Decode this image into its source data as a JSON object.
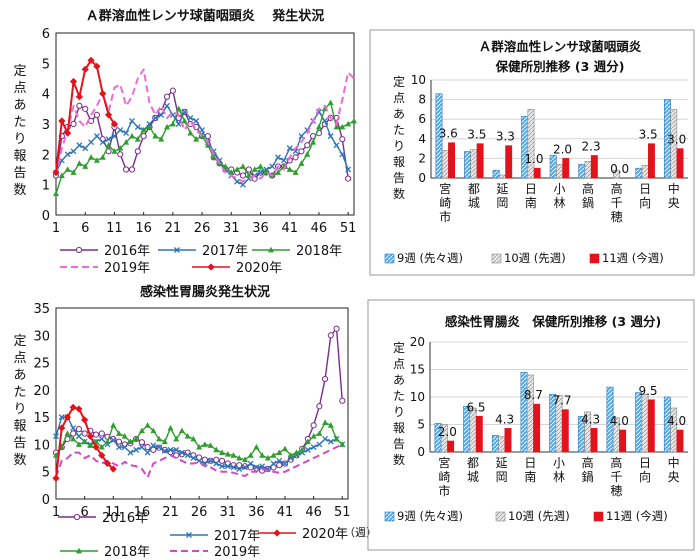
{
  "chart_data": [
    {
      "type": "line",
      "title": "Ａ群溶血性レンサ球菌咽頭炎　 発生状況",
      "ylabel": "定点あたり報告数",
      "xlabel": "",
      "ylim": [
        0,
        6
      ],
      "yticks": [
        "0",
        "1",
        "2",
        "3",
        "4",
        "5",
        "6"
      ],
      "xlim": [
        1,
        52
      ],
      "xticks": [
        "1",
        "6",
        "11",
        "16",
        "21",
        "26",
        "31",
        "36",
        "41",
        "46",
        "51"
      ],
      "grid": false,
      "legend": "bottom",
      "series": [
        {
          "name": "2016年",
          "color": "#7b2c8e",
          "marker": "circle",
          "values": [
            1.3,
            2.6,
            2.9,
            3.0,
            3.6,
            3.5,
            3.1,
            3.3,
            2.5,
            2.1,
            2.9,
            2.0,
            1.5,
            1.5,
            2.1,
            2.6,
            2.9,
            3.2,
            3.4,
            3.9,
            4.1,
            3.2,
            3.4,
            3.0,
            2.9,
            2.6,
            2.6,
            1.9,
            1.7,
            1.5,
            1.5,
            1.4,
            1.3,
            1.5,
            1.2,
            1.4,
            1.4,
            1.3,
            1.6,
            1.6,
            1.8,
            1.9,
            2.1,
            2.3,
            2.6,
            2.7,
            3.0,
            3.2,
            3.2,
            2.5,
            1.2
          ]
        },
        {
          "name": "2017年",
          "color": "#2e75b6",
          "marker": "x",
          "values": [
            1.4,
            1.8,
            2.0,
            2.1,
            2.3,
            2.2,
            2.4,
            2.6,
            2.4,
            2.5,
            2.6,
            2.8,
            2.7,
            3.1,
            2.9,
            2.8,
            3.0,
            3.2,
            3.3,
            3.6,
            3.3,
            3.0,
            3.4,
            3.2,
            3.1,
            2.8,
            2.4,
            2.1,
            1.8,
            1.5,
            1.3,
            1.1,
            1.0,
            1.2,
            1.3,
            1.4,
            1.5,
            1.6,
            1.9,
            1.8,
            2.2,
            2.1,
            2.6,
            2.8,
            3.1,
            3.4,
            3.1,
            2.6,
            2.3,
            2.0,
            1.5
          ]
        },
        {
          "name": "2018年",
          "color": "#2e9e2e",
          "marker": "triangle",
          "values": [
            0.7,
            1.3,
            1.5,
            1.4,
            1.7,
            1.6,
            1.9,
            1.8,
            1.9,
            2.3,
            2.1,
            2.2,
            2.4,
            2.6,
            2.5,
            2.8,
            2.9,
            2.6,
            2.5,
            2.9,
            3.0,
            3.5,
            3.1,
            2.7,
            2.5,
            2.6,
            2.3,
            1.9,
            1.7,
            1.6,
            1.4,
            1.5,
            1.6,
            1.3,
            1.5,
            1.6,
            1.4,
            1.3,
            1.4,
            1.6,
            1.5,
            1.4,
            1.7,
            2.0,
            2.4,
            2.9,
            3.5,
            3.7,
            2.9,
            2.9,
            3.0,
            3.1
          ]
        },
        {
          "name": "2019年",
          "color": "#ee6bd6",
          "marker": "none",
          "dash": true,
          "values": [
            1.3,
            2.2,
            2.8,
            3.6,
            3.1,
            2.9,
            3.3,
            3.6,
            4.0,
            3.4,
            4.2,
            4.3,
            3.6,
            3.9,
            4.5,
            4.8,
            3.7,
            3.3,
            3.6,
            3.2,
            3.4,
            3.3,
            2.8,
            3.1,
            2.8,
            2.6,
            2.4,
            2.0,
            1.7,
            1.4,
            1.3,
            1.2,
            1.1,
            1.2,
            1.3,
            1.2,
            1.4,
            1.3,
            1.6,
            1.5,
            1.9,
            2.2,
            2.4,
            2.7,
            3.1,
            3.5,
            3.6,
            3.2,
            3.0,
            3.8,
            4.7,
            4.5
          ]
        },
        {
          "name": "2020年",
          "color": "#e3131b",
          "marker": "diamond",
          "values": [
            1.4,
            3.1,
            2.7,
            4.4,
            3.9,
            4.8,
            5.1,
            4.9,
            4.0,
            3.3,
            3.0
          ]
        }
      ]
    },
    {
      "type": "bar",
      "title": "Ａ群溶血性レンサ球菌咽頭炎",
      "subtitle": "保健所別推移 (3 週分)",
      "ylabel": "定点あたり報告数",
      "ylim": [
        0,
        10
      ],
      "yticks": [
        "0",
        "2",
        "4",
        "6",
        "8",
        "10"
      ],
      "categories": [
        "宮崎市",
        "都城",
        "延岡",
        "日南",
        "小林",
        "高鍋",
        "高千穂",
        "日向",
        "中央"
      ],
      "legend": "bottom",
      "series": [
        {
          "name": "9週 (先々週)",
          "color": "#5ea9dd",
          "pattern": "hatch",
          "values": [
            8.6,
            2.7,
            0.8,
            6.3,
            2.3,
            1.4,
            0.0,
            1.0,
            8.0
          ]
        },
        {
          "name": "10週 (先週)",
          "color": "#d9d9d9",
          "pattern": "hatch",
          "values": [
            2.8,
            2.9,
            0.3,
            7.0,
            1.4,
            1.7,
            0.8,
            1.3,
            7.0
          ]
        },
        {
          "name": "11週 (今週)",
          "color": "#e3131b",
          "pattern": "solid",
          "values": [
            3.6,
            3.5,
            3.3,
            1.0,
            2.0,
            2.3,
            0.0,
            3.5,
            3.0
          ]
        }
      ],
      "data_labels": [
        "3.6",
        "3.5",
        "3.3",
        "1.0",
        "2.0",
        "2.3",
        "0.0",
        "3.5",
        "3.0"
      ]
    },
    {
      "type": "line",
      "title": "感染性胃腸炎発生状況",
      "ylabel": "定点あたり報告数",
      "xlabel": "（週）",
      "ylim": [
        0,
        35
      ],
      "yticks": [
        "0",
        "5",
        "10",
        "15",
        "20",
        "25",
        "30",
        "35"
      ],
      "xlim": [
        1,
        52
      ],
      "xticks": [
        "1",
        "6",
        "11",
        "16",
        "21",
        "26",
        "31",
        "36",
        "41",
        "46",
        "51"
      ],
      "grid": false,
      "legend": "bottom",
      "series": [
        {
          "name": "2016年",
          "color": "#7b2c8e",
          "marker": "circle",
          "values": [
            8.5,
            9.5,
            11.0,
            12.0,
            12.8,
            12.0,
            12.5,
            11.8,
            12.0,
            11.4,
            11.0,
            10.5,
            10.0,
            10.2,
            11.0,
            10.4,
            9.5,
            9.0,
            9.4,
            9.0,
            8.6,
            8.0,
            8.2,
            8.5,
            8.0,
            7.6,
            7.2,
            7.0,
            7.2,
            7.0,
            6.5,
            6.2,
            6.2,
            6.0,
            5.8,
            5.6,
            5.2,
            5.5,
            5.8,
            6.2,
            6.5,
            7.2,
            8.0,
            9.2,
            11.0,
            13.5,
            17.0,
            22.0,
            30.0,
            31.2,
            18.0
          ]
        },
        {
          "name": "2017年",
          "color": "#2e75b6",
          "marker": "x",
          "values": [
            11.5,
            15.0,
            15.0,
            13.0,
            11.5,
            10.5,
            10.0,
            10.5,
            11.0,
            10.0,
            10.8,
            9.5,
            9.5,
            8.5,
            9.0,
            9.5,
            8.5,
            9.8,
            9.5,
            8.8,
            9.0,
            9.0,
            8.5,
            8.0,
            7.5,
            7.0,
            6.5,
            7.0,
            6.5,
            6.0,
            6.0,
            5.8,
            5.5,
            5.8,
            6.5,
            5.8,
            6.0,
            5.5,
            6.5,
            7.0,
            6.5,
            7.5,
            8.0,
            8.5,
            9.0,
            9.5,
            10.0,
            11.0,
            10.5,
            11.0,
            10.0
          ]
        },
        {
          "name": "2018年",
          "color": "#2e9e2e",
          "marker": "triangle",
          "values": [
            8.0,
            9.5,
            12.0,
            11.0,
            10.0,
            10.5,
            9.8,
            10.5,
            9.5,
            10.5,
            13.5,
            12.0,
            11.5,
            10.5,
            11.0,
            12.5,
            13.5,
            12.5,
            11.0,
            10.5,
            13.0,
            11.0,
            12.5,
            11.5,
            11.0,
            9.5,
            10.0,
            9.8,
            9.0,
            8.5,
            8.2,
            8.0,
            7.5,
            7.2,
            8.0,
            9.5,
            8.0,
            7.5,
            8.0,
            8.5,
            9.2,
            8.0,
            8.5,
            9.0,
            10.5,
            11.5,
            12.0,
            14.0,
            13.5,
            11.0,
            10.0
          ]
        },
        {
          "name": "2019年",
          "color": "#d548c6",
          "marker": "none",
          "dash": true,
          "values": [
            4.0,
            7.0,
            7.5,
            8.5,
            8.5,
            7.5,
            8.0,
            7.0,
            6.5,
            7.0,
            6.5,
            6.0,
            6.8,
            6.2,
            6.0,
            5.5,
            4.0,
            6.5,
            7.0,
            7.5,
            8.0,
            7.5,
            7.0,
            6.5,
            6.5,
            6.8,
            6.0,
            5.8,
            5.2,
            5.0,
            5.0,
            4.8,
            4.5,
            4.2,
            5.0,
            5.0,
            5.5,
            5.2,
            5.0,
            4.8,
            5.0,
            5.5,
            6.0,
            6.5,
            7.0,
            7.5,
            8.0,
            8.5,
            9.0,
            9.5,
            10.0
          ]
        },
        {
          "name": "2020年",
          "color": "#e3131b",
          "marker": "diamond",
          "values": [
            3.8,
            13.0,
            15.0,
            16.8,
            16.5,
            14.5,
            11.5,
            9.5,
            8.0,
            6.5,
            5.5
          ]
        }
      ]
    },
    {
      "type": "bar",
      "title": "感染性胃腸炎　保健所別推移 (3 週分)",
      "ylabel": "定点あたり報告数",
      "ylim": [
        0,
        20
      ],
      "yticks": [
        "0",
        "5",
        "10",
        "15",
        "20"
      ],
      "categories": [
        "宮崎市",
        "都城",
        "延岡",
        "日南",
        "小林",
        "高鍋",
        "高千穂",
        "日向",
        "中央"
      ],
      "legend": "bottom",
      "series": [
        {
          "name": "9週 (先々週)",
          "color": "#5ea9dd",
          "pattern": "hatch",
          "values": [
            5.2,
            8.3,
            3.0,
            14.5,
            10.5,
            6.5,
            11.8,
            10.8,
            10.0
          ]
        },
        {
          "name": "10週 (先週)",
          "color": "#d9d9d9",
          "pattern": "hatch",
          "values": [
            5.0,
            8.0,
            2.8,
            14.0,
            10.3,
            7.3,
            6.2,
            10.5,
            8.0
          ]
        },
        {
          "name": "11週 (今週)",
          "color": "#e3131b",
          "pattern": "solid",
          "values": [
            2.0,
            6.5,
            4.3,
            8.7,
            7.7,
            4.3,
            4.0,
            9.5,
            4.0
          ]
        }
      ],
      "data_labels": [
        "2.0",
        "6.5",
        "4.3",
        "8.7",
        "7.7",
        "4.3",
        "4.0",
        "9.5",
        "4.0"
      ]
    }
  ]
}
